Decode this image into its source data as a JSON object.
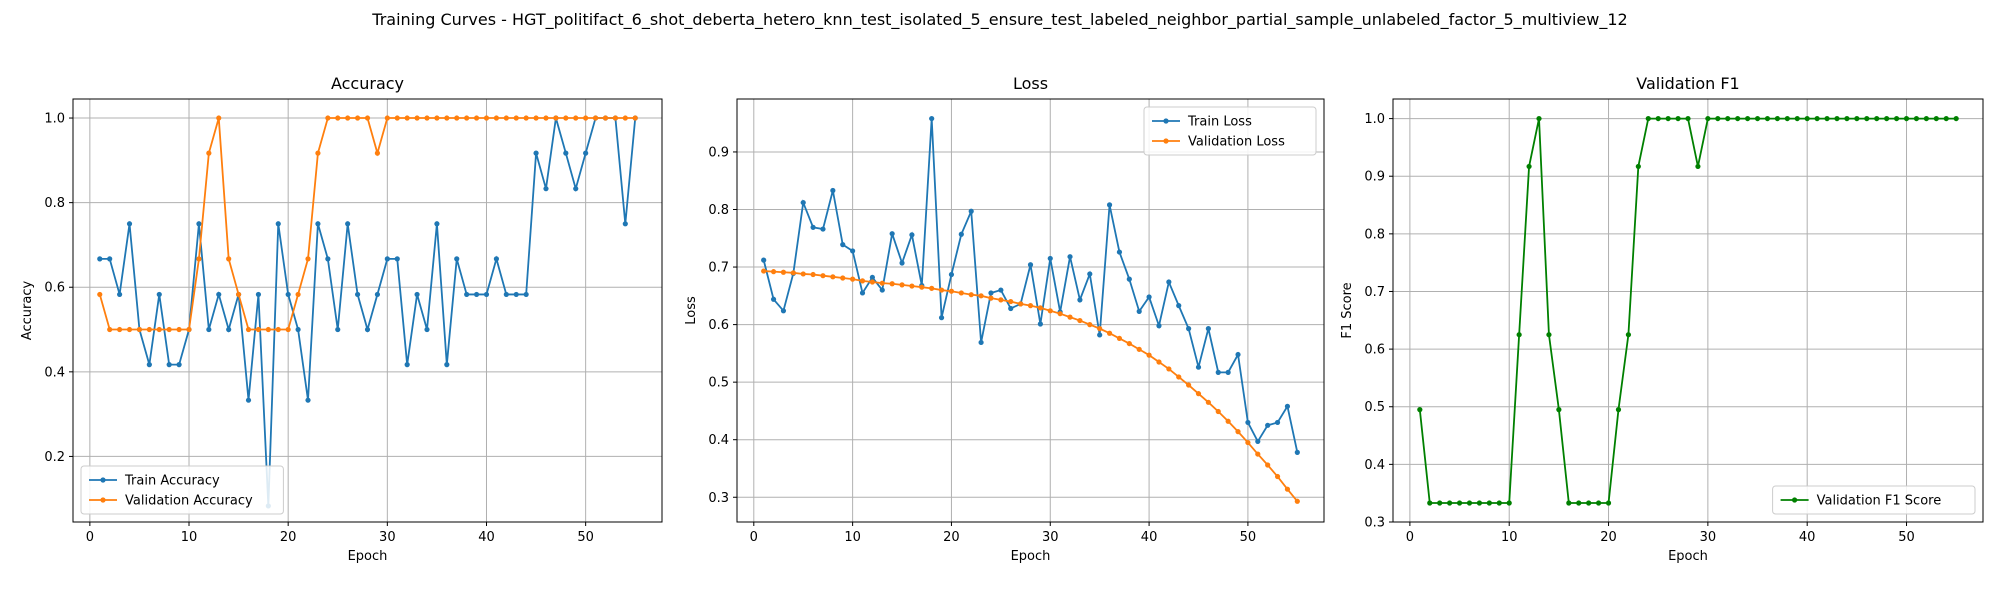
{
  "figure": {
    "suptitle": "Training Curves - HGT_politifact_6_shot_deberta_hetero_knn_test_isolated_5_ensure_test_labeled_neighbor_partial_sample_unlabeled_factor_5_multiview_12"
  },
  "colors": {
    "blue": "#1f77b4",
    "orange": "#ff7f0e",
    "green": "#008000",
    "grid": "#b0b0b0"
  },
  "chart_data": [
    {
      "type": "line",
      "title": "Accuracy",
      "xlabel": "Epoch",
      "ylabel": "Accuracy",
      "xlim": [
        -1.7,
        57.7
      ],
      "ylim": [
        0.045,
        1.045
      ],
      "xticks": [
        0,
        10,
        20,
        30,
        40,
        50
      ],
      "yticks": [
        0.2,
        0.4,
        0.6,
        0.8,
        1.0
      ],
      "ytick_labels": [
        "0.2",
        "0.4",
        "0.6",
        "0.8",
        "1.0"
      ],
      "grid": true,
      "legend": "lower-left",
      "x": [
        1,
        2,
        3,
        4,
        5,
        6,
        7,
        8,
        9,
        10,
        11,
        12,
        13,
        14,
        15,
        16,
        17,
        18,
        19,
        20,
        21,
        22,
        23,
        24,
        25,
        26,
        27,
        28,
        29,
        30,
        31,
        32,
        33,
        34,
        35,
        36,
        37,
        38,
        39,
        40,
        41,
        42,
        43,
        44,
        45,
        46,
        47,
        48,
        49,
        50,
        51,
        52,
        53,
        54,
        55
      ],
      "series": [
        {
          "name": "Train Accuracy",
          "color": "#1f77b4",
          "values": [
            0.667,
            0.667,
            0.583,
            0.75,
            0.5,
            0.417,
            0.583,
            0.417,
            0.417,
            0.5,
            0.75,
            0.5,
            0.583,
            0.5,
            0.583,
            0.333,
            0.583,
            0.083,
            0.75,
            0.583,
            0.5,
            0.333,
            0.75,
            0.667,
            0.5,
            0.75,
            0.583,
            0.5,
            0.583,
            0.667,
            0.667,
            0.417,
            0.583,
            0.5,
            0.75,
            0.417,
            0.667,
            0.583,
            0.583,
            0.583,
            0.667,
            0.583,
            0.583,
            0.583,
            0.917,
            0.833,
            1.0,
            0.917,
            0.833,
            0.917,
            1.0,
            1.0,
            1.0,
            0.75,
            1.0
          ]
        },
        {
          "name": "Validation Accuracy",
          "color": "#ff7f0e",
          "values": [
            0.583,
            0.5,
            0.5,
            0.5,
            0.5,
            0.5,
            0.5,
            0.5,
            0.5,
            0.5,
            0.667,
            0.917,
            1.0,
            0.667,
            0.583,
            0.5,
            0.5,
            0.5,
            0.5,
            0.5,
            0.583,
            0.667,
            0.917,
            1.0,
            1.0,
            1.0,
            1.0,
            1.0,
            0.917,
            1.0,
            1.0,
            1.0,
            1.0,
            1.0,
            1.0,
            1.0,
            1.0,
            1.0,
            1.0,
            1.0,
            1.0,
            1.0,
            1.0,
            1.0,
            1.0,
            1.0,
            1.0,
            1.0,
            1.0,
            1.0,
            1.0,
            1.0,
            1.0,
            1.0,
            1.0
          ]
        }
      ]
    },
    {
      "type": "line",
      "title": "Loss",
      "xlabel": "Epoch",
      "ylabel": "Loss",
      "xlim": [
        -1.7,
        57.7
      ],
      "ylim": [
        0.257,
        0.992
      ],
      "xticks": [
        0,
        10,
        20,
        30,
        40,
        50
      ],
      "yticks": [
        0.3,
        0.4,
        0.5,
        0.6,
        0.7,
        0.8,
        0.9
      ],
      "ytick_labels": [
        "0.3",
        "0.4",
        "0.5",
        "0.6",
        "0.7",
        "0.8",
        "0.9"
      ],
      "grid": true,
      "legend": "upper-right",
      "x": [
        1,
        2,
        3,
        4,
        5,
        6,
        7,
        8,
        9,
        10,
        11,
        12,
        13,
        14,
        15,
        16,
        17,
        18,
        19,
        20,
        21,
        22,
        23,
        24,
        25,
        26,
        27,
        28,
        29,
        30,
        31,
        32,
        33,
        34,
        35,
        36,
        37,
        38,
        39,
        40,
        41,
        42,
        43,
        44,
        45,
        46,
        47,
        48,
        49,
        50,
        51,
        52,
        53,
        54,
        55
      ],
      "series": [
        {
          "name": "Train Loss",
          "color": "#1f77b4",
          "values": [
            0.712,
            0.644,
            0.624,
            0.689,
            0.812,
            0.769,
            0.766,
            0.833,
            0.739,
            0.728,
            0.655,
            0.682,
            0.66,
            0.758,
            0.707,
            0.756,
            0.668,
            0.958,
            0.612,
            0.687,
            0.757,
            0.797,
            0.569,
            0.655,
            0.66,
            0.628,
            0.636,
            0.704,
            0.601,
            0.715,
            0.622,
            0.718,
            0.643,
            0.688,
            0.582,
            0.808,
            0.726,
            0.679,
            0.623,
            0.648,
            0.598,
            0.674,
            0.633,
            0.593,
            0.526,
            0.593,
            0.517,
            0.517,
            0.548,
            0.43,
            0.397,
            0.425,
            0.43,
            0.458,
            0.378
          ]
        },
        {
          "name": "Validation Loss",
          "color": "#ff7f0e",
          "values": [
            0.693,
            0.692,
            0.691,
            0.69,
            0.688,
            0.687,
            0.685,
            0.683,
            0.681,
            0.679,
            0.676,
            0.674,
            0.672,
            0.671,
            0.669,
            0.667,
            0.665,
            0.663,
            0.66,
            0.658,
            0.655,
            0.652,
            0.65,
            0.646,
            0.643,
            0.64,
            0.636,
            0.633,
            0.629,
            0.624,
            0.619,
            0.613,
            0.607,
            0.6,
            0.593,
            0.585,
            0.576,
            0.567,
            0.557,
            0.547,
            0.535,
            0.523,
            0.509,
            0.495,
            0.48,
            0.465,
            0.449,
            0.432,
            0.414,
            0.395,
            0.375,
            0.356,
            0.336,
            0.314,
            0.293
          ]
        }
      ]
    },
    {
      "type": "line",
      "title": "Validation F1",
      "xlabel": "Epoch",
      "ylabel": "F1 Score",
      "xlim": [
        -1.7,
        57.7
      ],
      "ylim": [
        0.3,
        1.034
      ],
      "xticks": [
        0,
        10,
        20,
        30,
        40,
        50
      ],
      "yticks": [
        0.3,
        0.4,
        0.5,
        0.6,
        0.7,
        0.8,
        0.9,
        1.0
      ],
      "ytick_labels": [
        "0.3",
        "0.4",
        "0.5",
        "0.6",
        "0.7",
        "0.8",
        "0.9",
        "1.0"
      ],
      "grid": true,
      "legend": "lower-right",
      "x": [
        1,
        2,
        3,
        4,
        5,
        6,
        7,
        8,
        9,
        10,
        11,
        12,
        13,
        14,
        15,
        16,
        17,
        18,
        19,
        20,
        21,
        22,
        23,
        24,
        25,
        26,
        27,
        28,
        29,
        30,
        31,
        32,
        33,
        34,
        35,
        36,
        37,
        38,
        39,
        40,
        41,
        42,
        43,
        44,
        45,
        46,
        47,
        48,
        49,
        50,
        51,
        52,
        53,
        54,
        55
      ],
      "series": [
        {
          "name": "Validation F1 Score",
          "color": "#008000",
          "values": [
            0.495,
            0.333,
            0.333,
            0.333,
            0.333,
            0.333,
            0.333,
            0.333,
            0.333,
            0.333,
            0.625,
            0.917,
            1.0,
            0.625,
            0.495,
            0.333,
            0.333,
            0.333,
            0.333,
            0.333,
            0.495,
            0.625,
            0.917,
            1.0,
            1.0,
            1.0,
            1.0,
            1.0,
            0.917,
            1.0,
            1.0,
            1.0,
            1.0,
            1.0,
            1.0,
            1.0,
            1.0,
            1.0,
            1.0,
            1.0,
            1.0,
            1.0,
            1.0,
            1.0,
            1.0,
            1.0,
            1.0,
            1.0,
            1.0,
            1.0,
            1.0,
            1.0,
            1.0,
            1.0,
            1.0
          ]
        }
      ]
    }
  ]
}
